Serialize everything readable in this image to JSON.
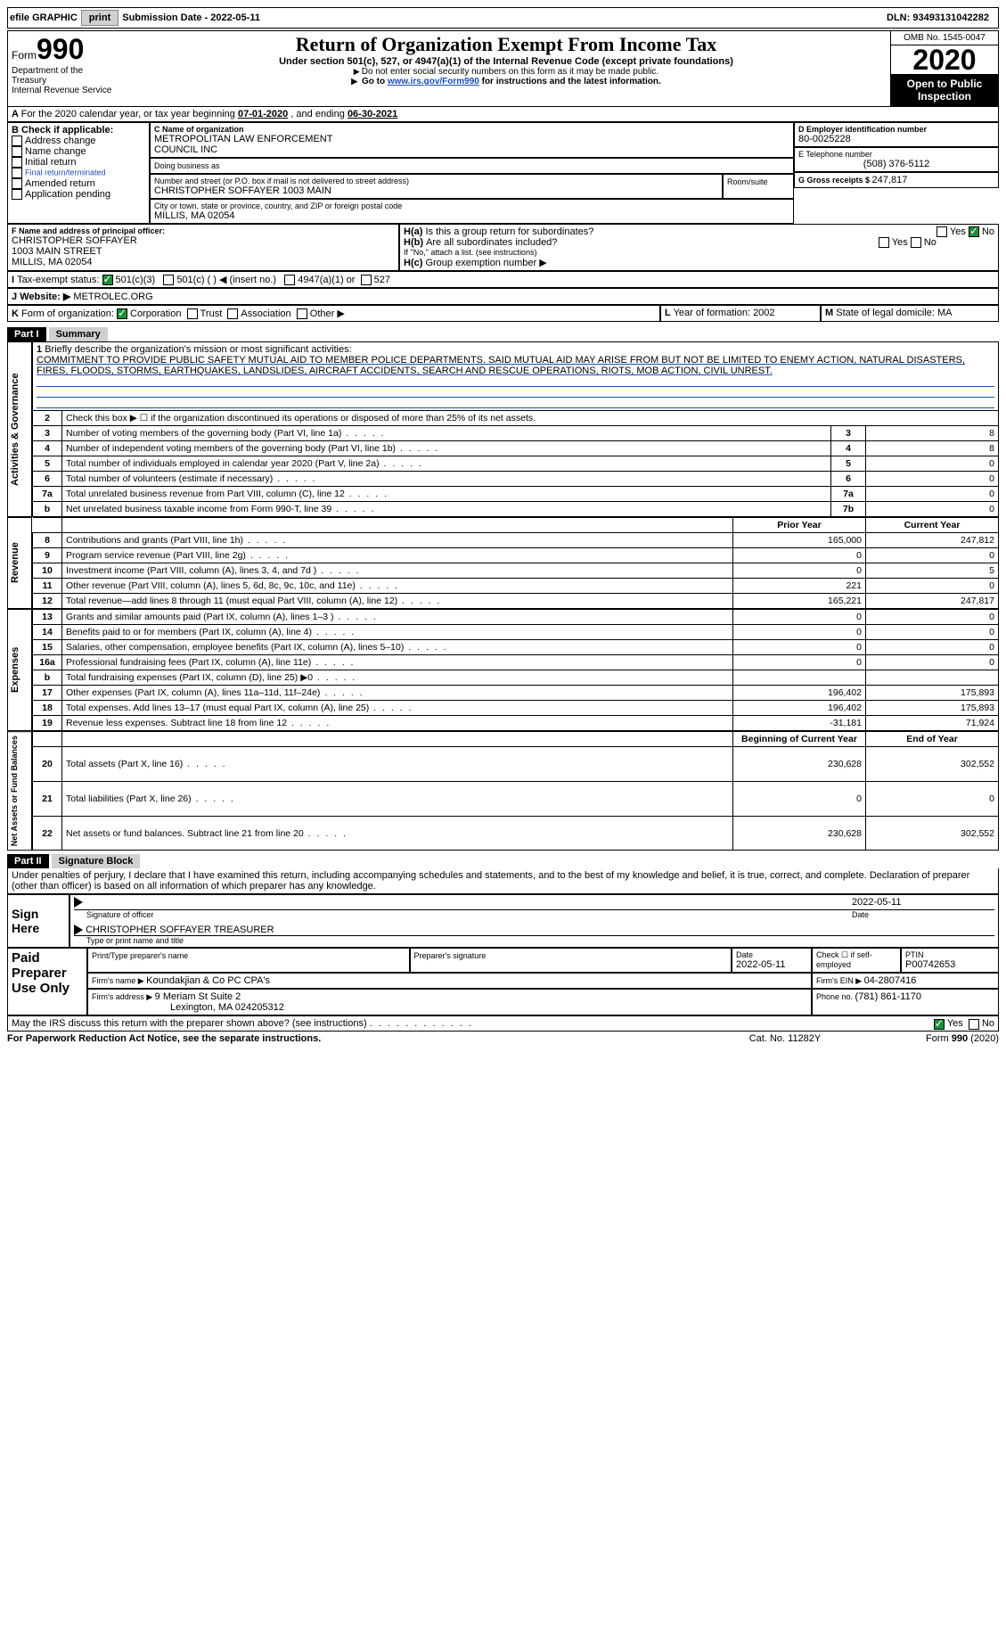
{
  "topbar": {
    "efile": "efile GRAPHIC",
    "print": "print",
    "subdate_label": "Submission Date - ",
    "subdate": "2022-05-11",
    "dln_label": "DLN: ",
    "dln": "93493131042282"
  },
  "header": {
    "form_word": "Form",
    "form_num": "990",
    "dept": "Department of the Treasury",
    "irs": "Internal Revenue Service",
    "title": "Return of Organization Exempt From Income Tax",
    "subtitle": "Under section 501(c), 527, or 4947(a)(1) of the Internal Revenue Code (except private foundations)",
    "instr1": "Do not enter social security numbers on this form as it may be made public.",
    "instr2a": "Go to ",
    "instr2_link": "www.irs.gov/Form990",
    "instr2b": " for instructions and the latest information.",
    "omb": "OMB No. 1545-0047",
    "year": "2020",
    "open": "Open to Public Inspection"
  },
  "A": {
    "line": "For the 2020 calendar year, or tax year beginning ",
    "begin": "07-01-2020",
    "mid": " , and ending ",
    "end": "06-30-2021"
  },
  "B": {
    "label": "Check if applicable:",
    "items": [
      "Address change",
      "Name change",
      "Initial return",
      "Final return/terminated",
      "Amended return",
      "Application pending"
    ]
  },
  "C": {
    "name_label": "C Name of organization",
    "name1": "METROPOLITAN LAW ENFORCEMENT",
    "name2": "COUNCIL INC",
    "dba_label": "Doing business as",
    "addr_label": "Number and street (or P.O. box if mail is not delivered to street address)",
    "room_label": "Room/suite",
    "addr": "CHRISTOPHER SOFFAYER 1003 MAIN",
    "city_label": "City or town, state or province, country, and ZIP or foreign postal code",
    "city": "MILLIS, MA  02054"
  },
  "D": {
    "label": "D Employer identification number",
    "val": "80-0025228"
  },
  "E": {
    "label": "E Telephone number",
    "val": "(508) 376-5112"
  },
  "G": {
    "label": "G Gross receipts $ ",
    "val": "247,817"
  },
  "F": {
    "label": "F  Name and address of principal officer:",
    "l1": "CHRISTOPHER SOFFAYER",
    "l2": "1003 MAIN STREET",
    "l3": "MILLIS, MA  02054"
  },
  "H": {
    "a": "Is this a group return for subordinates?",
    "b": "Are all subordinates included?",
    "b2": "If \"No,\" attach a list. (see instructions)",
    "c": "Group exemption number ▶",
    "yes": "Yes",
    "no": "No"
  },
  "I": {
    "label": "Tax-exempt status:",
    "c3": "501(c)(3)",
    "c": "501(c) (   ) ◀ (insert no.)",
    "a1": "4947(a)(1) or",
    "s527": "527"
  },
  "J": {
    "label": "Website: ▶",
    "val": "METROLEC.ORG"
  },
  "K": {
    "label": "Form of organization:",
    "opts": [
      "Corporation",
      "Trust",
      "Association",
      "Other ▶"
    ]
  },
  "L": {
    "label": "Year of formation: ",
    "val": "2002"
  },
  "M": {
    "label": "State of legal domicile: ",
    "val": "MA"
  },
  "partI": {
    "tag": "Part I",
    "title": "Summary",
    "q1_label": "1",
    "q1": "Briefly describe the organization's mission or most significant activities:",
    "mission": "COMMITMENT TO PROVIDE PUBLIC SAFETY MUTUAL AID TO MEMBER POLICE DEPARTMENTS. SAID MUTUAL AID MAY ARISE FROM BUT NOT BE LIMITED TO ENEMY ACTION, NATURAL DISASTERS, FIRES, FLOODS, STORMS, EARTHQUAKES, LANDSLIDES, AIRCRAFT ACCIDENTS, SEARCH AND RESCUE OPERATIONS, RIOTS, MOB ACTION, CIVIL UNREST.",
    "gov_tab": "Activities & Governance",
    "rev_tab": "Revenue",
    "exp_tab": "Expenses",
    "na_tab": "Net Assets or Fund Balances",
    "rows_gov": [
      {
        "n": "2",
        "t": "Check this box ▶ ☐ if the organization discontinued its operations or disposed of more than 25% of its net assets."
      },
      {
        "n": "3",
        "t": "Number of voting members of the governing body (Part VI, line 1a)",
        "box": "3",
        "v": "8"
      },
      {
        "n": "4",
        "t": "Number of independent voting members of the governing body (Part VI, line 1b)",
        "box": "4",
        "v": "8"
      },
      {
        "n": "5",
        "t": "Total number of individuals employed in calendar year 2020 (Part V, line 2a)",
        "box": "5",
        "v": "0"
      },
      {
        "n": "6",
        "t": "Total number of volunteers (estimate if necessary)",
        "box": "6",
        "v": "0"
      },
      {
        "n": "7a",
        "t": "Total unrelated business revenue from Part VIII, column (C), line 12",
        "box": "7a",
        "v": "0"
      },
      {
        "n": "b",
        "t": "Net unrelated business taxable income from Form 990-T, line 39",
        "box": "7b",
        "v": "0"
      }
    ],
    "col_prior": "Prior Year",
    "col_current": "Current Year",
    "rows_rev": [
      {
        "n": "8",
        "t": "Contributions and grants (Part VIII, line 1h)",
        "p": "165,000",
        "c": "247,812"
      },
      {
        "n": "9",
        "t": "Program service revenue (Part VIII, line 2g)",
        "p": "0",
        "c": "0"
      },
      {
        "n": "10",
        "t": "Investment income (Part VIII, column (A), lines 3, 4, and 7d )",
        "p": "0",
        "c": "5"
      },
      {
        "n": "11",
        "t": "Other revenue (Part VIII, column (A), lines 5, 6d, 8c, 9c, 10c, and 11e)",
        "p": "221",
        "c": "0"
      },
      {
        "n": "12",
        "t": "Total revenue—add lines 8 through 11 (must equal Part VIII, column (A), line 12)",
        "p": "165,221",
        "c": "247,817"
      }
    ],
    "rows_exp": [
      {
        "n": "13",
        "t": "Grants and similar amounts paid (Part IX, column (A), lines 1–3 )",
        "p": "0",
        "c": "0"
      },
      {
        "n": "14",
        "t": "Benefits paid to or for members (Part IX, column (A), line 4)",
        "p": "0",
        "c": "0"
      },
      {
        "n": "15",
        "t": "Salaries, other compensation, employee benefits (Part IX, column (A), lines 5–10)",
        "p": "0",
        "c": "0"
      },
      {
        "n": "16a",
        "t": "Professional fundraising fees (Part IX, column (A), line 11e)",
        "p": "0",
        "c": "0"
      },
      {
        "n": "b",
        "t": "Total fundraising expenses (Part IX, column (D), line 25) ▶0",
        "p": "",
        "c": ""
      },
      {
        "n": "17",
        "t": "Other expenses (Part IX, column (A), lines 11a–11d, 11f–24e)",
        "p": "196,402",
        "c": "175,893"
      },
      {
        "n": "18",
        "t": "Total expenses. Add lines 13–17 (must equal Part IX, column (A), line 25)",
        "p": "196,402",
        "c": "175,893"
      },
      {
        "n": "19",
        "t": "Revenue less expenses. Subtract line 18 from line 12",
        "p": "-31,181",
        "c": "71,924"
      }
    ],
    "col_begin": "Beginning of Current Year",
    "col_end": "End of Year",
    "rows_na": [
      {
        "n": "20",
        "t": "Total assets (Part X, line 16)",
        "p": "230,628",
        "c": "302,552"
      },
      {
        "n": "21",
        "t": "Total liabilities (Part X, line 26)",
        "p": "0",
        "c": "0"
      },
      {
        "n": "22",
        "t": "Net assets or fund balances. Subtract line 21 from line 20",
        "p": "230,628",
        "c": "302,552"
      }
    ]
  },
  "partII": {
    "tag": "Part II",
    "title": "Signature Block",
    "decl": "Under penalties of perjury, I declare that I have examined this return, including accompanying schedules and statements, and to the best of my knowledge and belief, it is true, correct, and complete. Declaration of preparer (other than officer) is based on all information of which preparer has any knowledge.",
    "sign_here": "Sign Here",
    "sig_officer": "Signature of officer",
    "date": "Date",
    "sig_date": "2022-05-11",
    "officer_name": "CHRISTOPHER SOFFAYER  TREASURER",
    "type_name": "Type or print name and title",
    "paid": "Paid Preparer Use Only",
    "prep_name_label": "Print/Type preparer's name",
    "prep_sig_label": "Preparer's signature",
    "prep_date_label": "Date",
    "prep_date": "2022-05-11",
    "check_self": "Check ☐ if self-employed",
    "ptin_label": "PTIN",
    "ptin": "P00742653",
    "firm_name_label": "Firm's name    ▶ ",
    "firm_name": "Koundakjian & Co PC CPA's",
    "firm_ein_label": "Firm's EIN ▶ ",
    "firm_ein": "04-2807416",
    "firm_addr_label": "Firm's address ▶ ",
    "firm_addr1": "9 Meriam St Suite 2",
    "firm_addr2": "Lexington, MA  024205312",
    "phone_label": "Phone no. ",
    "phone": "(781) 861-1170",
    "may_discuss": "May the IRS discuss this return with the preparer shown above? (see instructions)",
    "yes": "Yes",
    "no": "No"
  },
  "footer": {
    "pra": "For Paperwork Reduction Act Notice, see the separate instructions.",
    "cat": "Cat. No. 11282Y",
    "form": "Form 990 (2020)"
  },
  "colors": {
    "link": "#1a4fb5",
    "check": "#1a8f3a",
    "bg": "#ffffff",
    "gray": "#d0d0d0"
  }
}
